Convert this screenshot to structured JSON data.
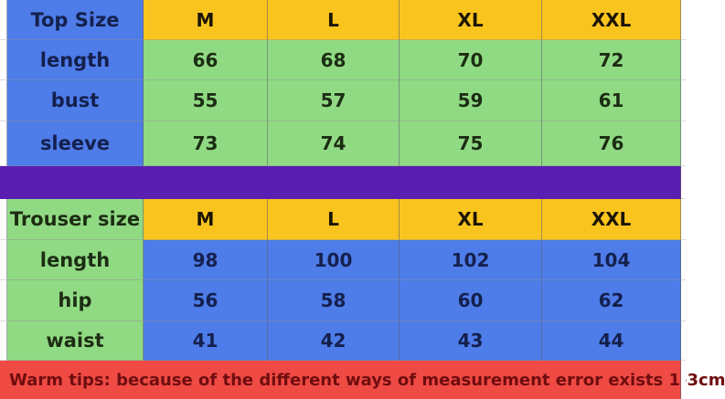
{
  "colors": {
    "blue": "#4e7ce8",
    "green": "#91da84",
    "yellow": "#fac41e",
    "purple": "#5a1eb0",
    "red": "#ef4a44",
    "footer_text": "#6f0d0f",
    "grid_line": "#6b7078"
  },
  "top_table": {
    "header": {
      "label": "Top Size",
      "sizes": [
        "M",
        "L",
        "XL",
        "XXL"
      ]
    },
    "rows": [
      {
        "label": "length",
        "values": [
          "66",
          "68",
          "70",
          "72"
        ]
      },
      {
        "label": "bust",
        "values": [
          "55",
          "57",
          "59",
          "61"
        ]
      },
      {
        "label": "sleeve",
        "values": [
          "73",
          "74",
          "75",
          "76"
        ]
      }
    ]
  },
  "trouser_table": {
    "header": {
      "label": "Trouser size",
      "sizes": [
        "M",
        "L",
        "XL",
        "XXL"
      ]
    },
    "rows": [
      {
        "label": "length",
        "values": [
          "98",
          "100",
          "102",
          "104"
        ]
      },
      {
        "label": "hip",
        "values": [
          "56",
          "58",
          "60",
          "62"
        ]
      },
      {
        "label": "waist",
        "values": [
          "41",
          "42",
          "43",
          "44"
        ]
      }
    ]
  },
  "footer": {
    "text": "Warm tips: because of the different ways of measurement error exists 1-3cm"
  },
  "chart_data": [
    {
      "type": "table",
      "title": "Top Size",
      "columns": [
        "Top Size",
        "M",
        "L",
        "XL",
        "XXL"
      ],
      "rows": [
        [
          "length",
          66,
          68,
          70,
          72
        ],
        [
          "bust",
          55,
          57,
          59,
          61
        ],
        [
          "sleeve",
          73,
          74,
          75,
          76
        ]
      ]
    },
    {
      "type": "table",
      "title": "Trouser size",
      "columns": [
        "Trouser size",
        "M",
        "L",
        "XL",
        "XXL"
      ],
      "rows": [
        [
          "length",
          98,
          100,
          102,
          104
        ],
        [
          "hip",
          56,
          58,
          60,
          62
        ],
        [
          "waist",
          41,
          42,
          43,
          44
        ]
      ],
      "note": "Warm tips: because of the different ways of measurement error exists 1-3cm"
    }
  ]
}
